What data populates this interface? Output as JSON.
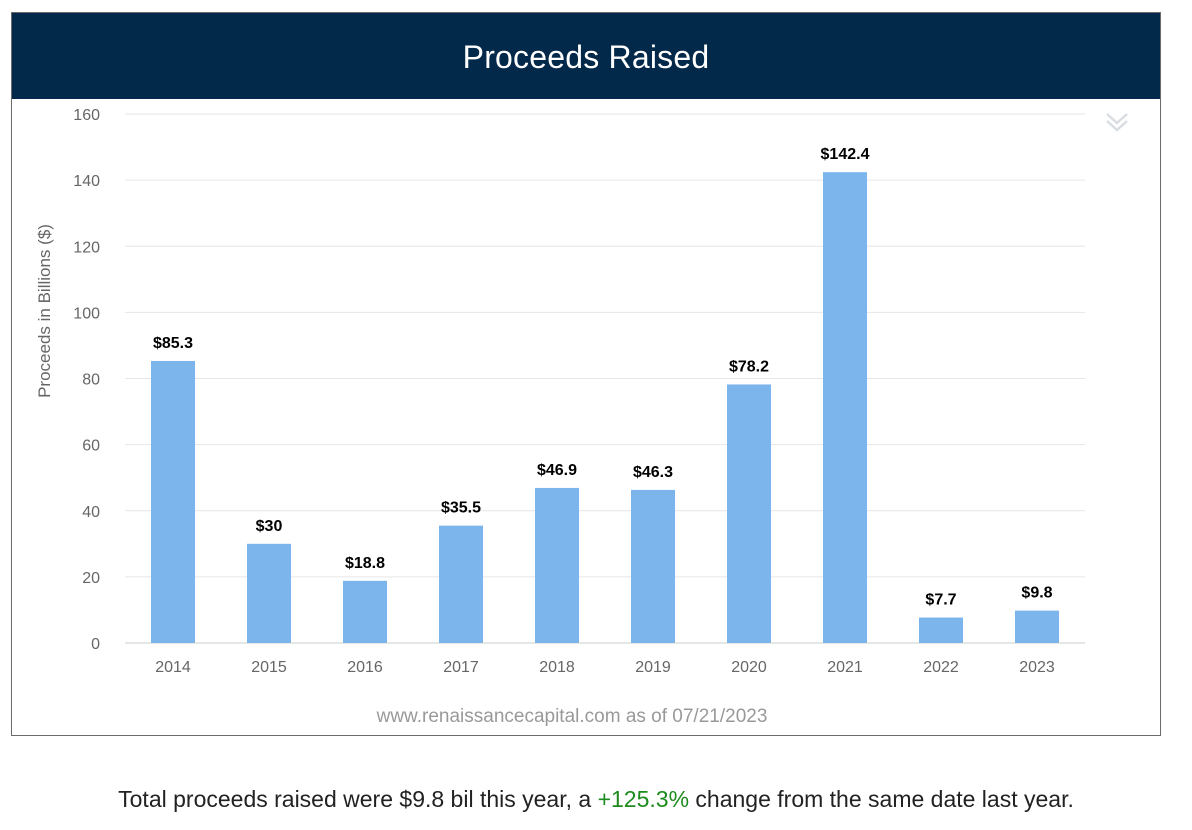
{
  "header": {
    "title": "Proceeds Raised"
  },
  "footer": {
    "credit": "www.renaissancecapital.com as of 07/21/2023"
  },
  "summary": {
    "prefix": "Total proceeds raised were $9.8 bil this year, a ",
    "change": "+125.3%",
    "suffix": " change from the same date last year."
  },
  "icons": {
    "menu": "double-chevron-down-icon"
  },
  "colors": {
    "header_bg": "#02284a",
    "bar": "#7cb5ec",
    "positive_change": "#1d8b1d"
  },
  "chart_data": {
    "type": "bar",
    "title": "Proceeds Raised",
    "xlabel": "",
    "ylabel": "Proceeds in Billions ($)",
    "ylim": [
      0,
      160
    ],
    "yticks": [
      0,
      20,
      40,
      60,
      80,
      100,
      120,
      140,
      160
    ],
    "grid": true,
    "categories": [
      "2014",
      "2015",
      "2016",
      "2017",
      "2018",
      "2019",
      "2020",
      "2021",
      "2022",
      "2023"
    ],
    "values": [
      85.3,
      30,
      18.8,
      35.5,
      46.9,
      46.3,
      78.2,
      142.4,
      7.7,
      9.8
    ],
    "data_labels": [
      "$85.3",
      "$30",
      "$18.8",
      "$35.5",
      "$46.9",
      "$46.3",
      "$78.2",
      "$142.4",
      "$7.7",
      "$9.8"
    ]
  }
}
